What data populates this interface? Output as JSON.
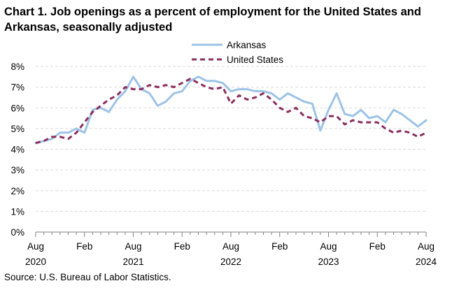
{
  "chart_data": {
    "type": "line",
    "title": "Chart 1. Job openings as a percent of employment for the United States and Arkansas, seasonally adjusted",
    "source": "Source: U.S. Bureau of Labor Statistics.",
    "xlabel": "",
    "ylabel": "",
    "ylim": [
      0,
      8
    ],
    "yticks": [
      "0%",
      "1%",
      "2%",
      "3%",
      "4%",
      "5%",
      "6%",
      "7%",
      "8%"
    ],
    "grid": true,
    "legend": "top-center",
    "x": [
      "Aug 2020",
      "Sep 2020",
      "Oct 2020",
      "Nov 2020",
      "Dec 2020",
      "Jan 2021",
      "Feb 2021",
      "Mar 2021",
      "Apr 2021",
      "May 2021",
      "Jun 2021",
      "Jul 2021",
      "Aug 2021",
      "Sep 2021",
      "Oct 2021",
      "Nov 2021",
      "Dec 2021",
      "Jan 2022",
      "Feb 2022",
      "Mar 2022",
      "Apr 2022",
      "May 2022",
      "Jun 2022",
      "Jul 2022",
      "Aug 2022",
      "Sep 2022",
      "Oct 2022",
      "Nov 2022",
      "Dec 2022",
      "Jan 2023",
      "Feb 2023",
      "Mar 2023",
      "Apr 2023",
      "May 2023",
      "Jun 2023",
      "Jul 2023",
      "Aug 2023",
      "Sep 2023",
      "Oct 2023",
      "Nov 2023",
      "Dec 2023",
      "Jan 2024",
      "Feb 2024",
      "Mar 2024",
      "Apr 2024",
      "May 2024",
      "Jun 2024",
      "Jul 2024",
      "Aug 2024"
    ],
    "xticks": [
      {
        "index": 0,
        "month": "Aug",
        "year": "2020"
      },
      {
        "index": 6,
        "month": "Feb",
        "year": ""
      },
      {
        "index": 12,
        "month": "Aug",
        "year": "2021"
      },
      {
        "index": 18,
        "month": "Feb",
        "year": ""
      },
      {
        "index": 24,
        "month": "Aug",
        "year": "2022"
      },
      {
        "index": 30,
        "month": "Feb",
        "year": ""
      },
      {
        "index": 36,
        "month": "Aug",
        "year": "2023"
      },
      {
        "index": 42,
        "month": "Feb",
        "year": ""
      },
      {
        "index": 48,
        "month": "Aug",
        "year": "2024"
      }
    ],
    "series": [
      {
        "name": "Arkansas",
        "color": "#9dc3e6",
        "style": "solid",
        "values": [
          4.3,
          4.4,
          4.5,
          4.8,
          4.8,
          5.0,
          4.8,
          5.9,
          6.0,
          5.8,
          6.4,
          6.8,
          7.5,
          6.9,
          6.7,
          6.1,
          6.3,
          6.7,
          6.8,
          7.3,
          7.5,
          7.3,
          7.3,
          7.2,
          6.8,
          6.9,
          6.9,
          6.8,
          6.8,
          6.7,
          6.4,
          6.7,
          6.5,
          6.3,
          6.2,
          4.9,
          5.9,
          6.7,
          5.7,
          5.6,
          5.9,
          5.5,
          5.6,
          5.3,
          5.9,
          5.7,
          5.4,
          5.1,
          5.4
        ]
      },
      {
        "name": "United States",
        "color": "#8b2e5e",
        "style": "dashed",
        "values": [
          4.3,
          4.4,
          4.6,
          4.6,
          4.5,
          4.8,
          5.3,
          5.8,
          6.1,
          6.4,
          6.6,
          7.0,
          6.9,
          6.9,
          7.1,
          7.0,
          7.1,
          7.0,
          7.2,
          7.4,
          7.2,
          7.0,
          6.9,
          7.0,
          6.2,
          6.6,
          6.4,
          6.5,
          6.7,
          6.4,
          6.0,
          5.8,
          6.0,
          5.6,
          5.5,
          5.3,
          5.6,
          5.6,
          5.2,
          5.4,
          5.3,
          5.3,
          5.3,
          5.0,
          4.8,
          4.9,
          4.8,
          4.6,
          4.8
        ]
      }
    ]
  }
}
